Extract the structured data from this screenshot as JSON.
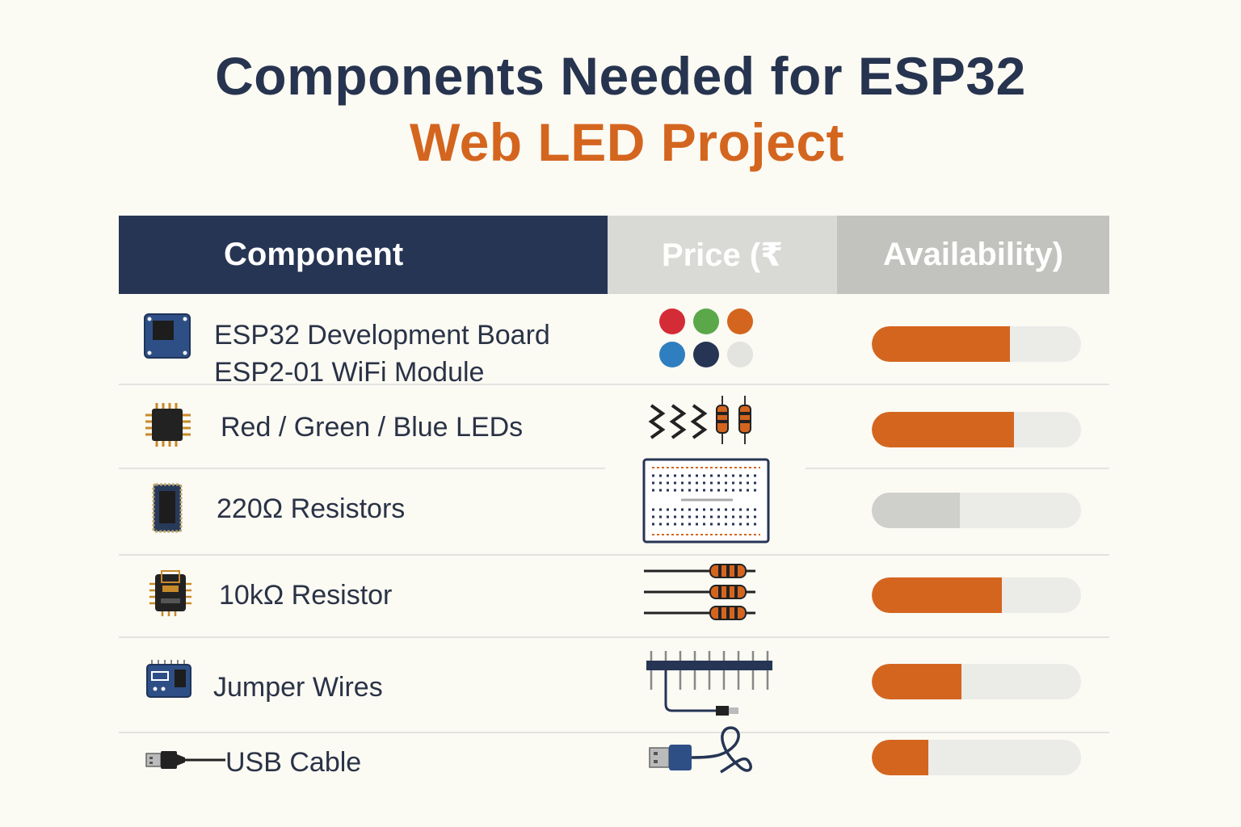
{
  "title": {
    "line1": "Components Needed for ESP32",
    "line2": "Web LED Project"
  },
  "colors": {
    "navy": "#263554",
    "orange": "#d4651f",
    "background": "#fbfaf3"
  },
  "table": {
    "headers": [
      "Component",
      "Price (₹",
      "Availability)"
    ],
    "rows": [
      {
        "icon": "esp32-board-icon",
        "label_lines": [
          "ESP32 Development Board",
          "ESP2-01 WiFi Module"
        ],
        "art": "color-dots",
        "availability": 0.66,
        "bar_color": "orange"
      },
      {
        "icon": "chip-icon",
        "label_lines": [
          "Red / Green / Blue LEDs"
        ],
        "art": "resistors-zigzag",
        "availability": 0.68,
        "bar_color": "orange"
      },
      {
        "icon": "module-icon",
        "label_lines": [
          "220Ω Resistors"
        ],
        "art": "breadboard",
        "availability": 0.42,
        "bar_color": "grey"
      },
      {
        "icon": "wifi-chip-icon",
        "label_lines": [
          "10kΩ Resistor"
        ],
        "art": "resistors",
        "availability": 0.62,
        "bar_color": "orange"
      },
      {
        "icon": "wifi-module-icon",
        "label_lines": [
          "Jumper Wires"
        ],
        "art": "jumper-wires",
        "availability": 0.43,
        "bar_color": "orange"
      },
      {
        "icon": "usb-plug-icon",
        "label_lines": [
          "USB Cable"
        ],
        "art": "usb-cable",
        "availability": 0.27,
        "bar_color": "orange"
      }
    ]
  }
}
